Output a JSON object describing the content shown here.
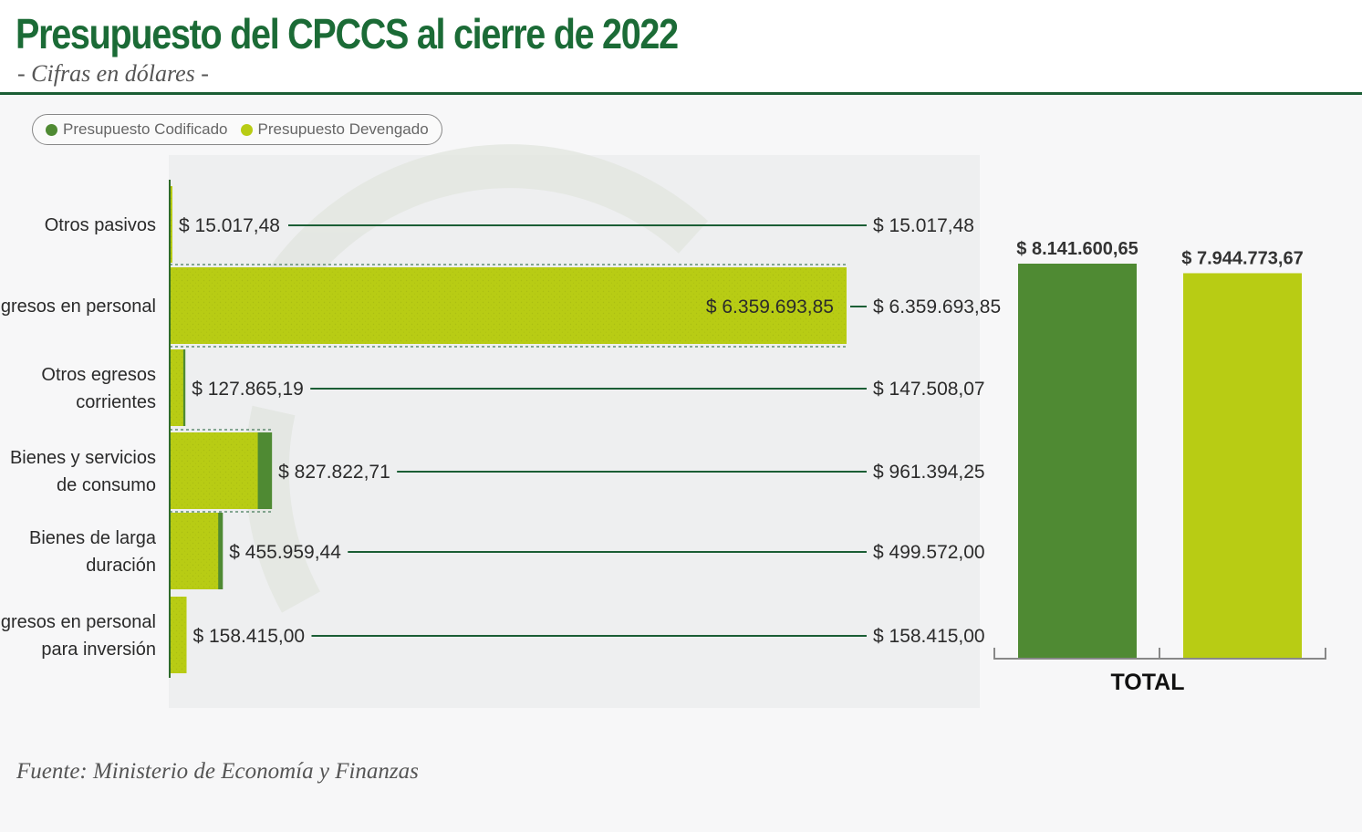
{
  "header": {
    "title": "Presupuesto del CPCCS al cierre de 2022",
    "subtitle": "- Cifras en dólares -"
  },
  "legend": {
    "items": [
      {
        "label": "Presupuesto Codificado",
        "color": "#4f8a33"
      },
      {
        "label": "Presupuesto Devengado",
        "color": "#b8cc14"
      }
    ]
  },
  "colors": {
    "codificado": "#4f8a33",
    "devengado": "#b8cc14",
    "leader_line": "#1b5e35",
    "brand": "#1b6b36"
  },
  "chart_data": [
    {
      "type": "bar",
      "orientation": "horizontal",
      "categories": [
        "Otros pasivos",
        "Egresos en personal",
        "Otros egresos corrientes",
        "Bienes y servicios de consumo",
        "Bienes de larga duración",
        "Egresos en personal para inversión"
      ],
      "category_lines": [
        [
          "Otros pasivos"
        ],
        [
          "Egresos en personal"
        ],
        [
          "Otros egresos",
          "corrientes"
        ],
        [
          "Bienes y servicios",
          "de consumo"
        ],
        [
          "Bienes de larga",
          "duración"
        ],
        [
          "Egresos en personal",
          "para inversión"
        ]
      ],
      "series": [
        {
          "name": "Presupuesto Codificado",
          "values": [
            15017.48,
            6359693.85,
            147508.07,
            961394.25,
            499572.0,
            158415.0
          ],
          "labels": [
            "$ 15.017,48",
            "$ 6.359.693,85",
            "$ 147.508,07",
            "$ 961.394,25",
            "$ 499.572,00",
            "$ 158.415,00"
          ]
        },
        {
          "name": "Presupuesto Devengado",
          "values": [
            15017.48,
            6359693.85,
            127865.19,
            827822.71,
            455959.44,
            158415.0
          ],
          "labels": [
            "$ 15.017,48",
            "$ 6.359.693,85",
            "$ 127.865,19",
            "$ 827.822,71",
            "$ 455.959,44",
            "$ 158.415,00"
          ]
        }
      ]
    },
    {
      "type": "bar",
      "categories": [
        "TOTAL"
      ],
      "series": [
        {
          "name": "Presupuesto Codificado",
          "values": [
            8141600.65
          ],
          "labels": [
            "$ 8.141.600,65"
          ]
        },
        {
          "name": "Presupuesto Devengado",
          "values": [
            7944773.67
          ],
          "labels": [
            "$ 7.944.773,67"
          ]
        }
      ]
    }
  ],
  "source": "Fuente: Ministerio de Economía y Finanzas"
}
